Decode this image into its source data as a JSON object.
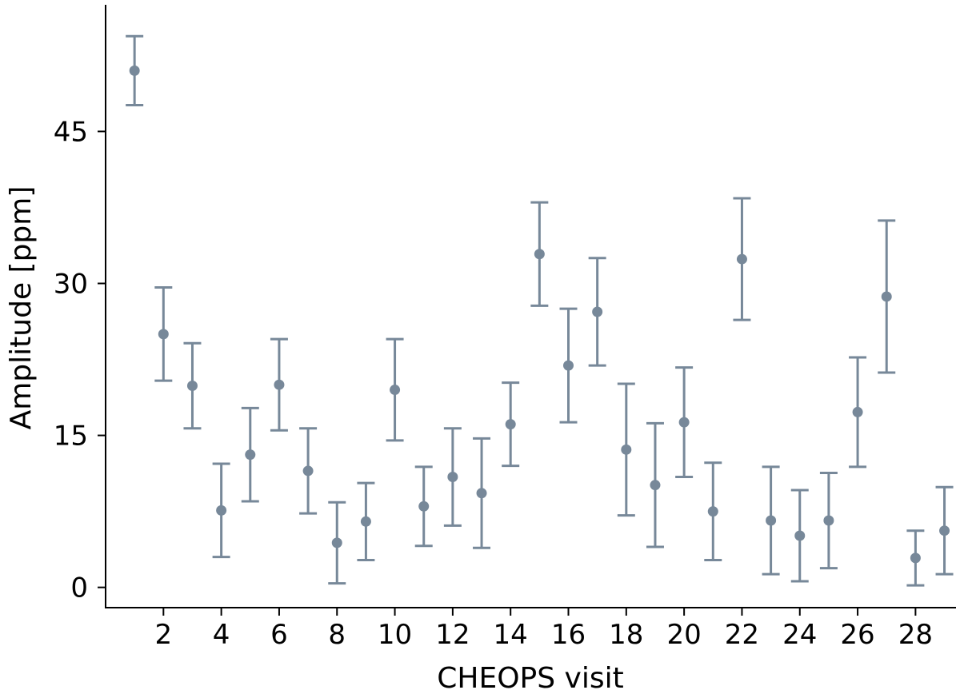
{
  "chart_data": {
    "type": "scatter",
    "xlabel": "CHEOPS visit",
    "ylabel": "Amplitude [ppm]",
    "xlim": [
      0,
      29.4
    ],
    "ylim": [
      -2,
      57.5
    ],
    "x_ticks": [
      2,
      4,
      6,
      8,
      10,
      12,
      14,
      16,
      18,
      20,
      22,
      24,
      26,
      28
    ],
    "y_ticks": [
      0,
      15,
      30,
      45
    ],
    "grid": false,
    "marker_color": "#778899",
    "x": [
      1,
      2,
      3,
      4,
      5,
      6,
      7,
      8,
      9,
      10,
      11,
      12,
      13,
      14,
      15,
      16,
      17,
      18,
      19,
      20,
      21,
      22,
      23,
      24,
      25,
      26,
      27,
      28,
      29
    ],
    "y": [
      51.0,
      25.0,
      19.9,
      7.6,
      13.1,
      20.0,
      11.5,
      4.4,
      6.5,
      19.5,
      8.0,
      10.9,
      9.3,
      16.1,
      32.9,
      21.9,
      27.2,
      13.6,
      10.1,
      16.3,
      7.5,
      32.4,
      6.6,
      5.1,
      6.6,
      17.3,
      28.7,
      2.9,
      5.6
    ],
    "y_err": [
      3.4,
      4.6,
      4.2,
      4.6,
      4.6,
      4.5,
      4.2,
      4.0,
      3.8,
      5.0,
      3.9,
      4.8,
      5.4,
      4.1,
      5.1,
      5.6,
      5.3,
      6.5,
      6.1,
      5.4,
      4.8,
      6.0,
      5.3,
      4.5,
      4.7,
      5.4,
      7.5,
      2.7,
      4.3
    ]
  }
}
